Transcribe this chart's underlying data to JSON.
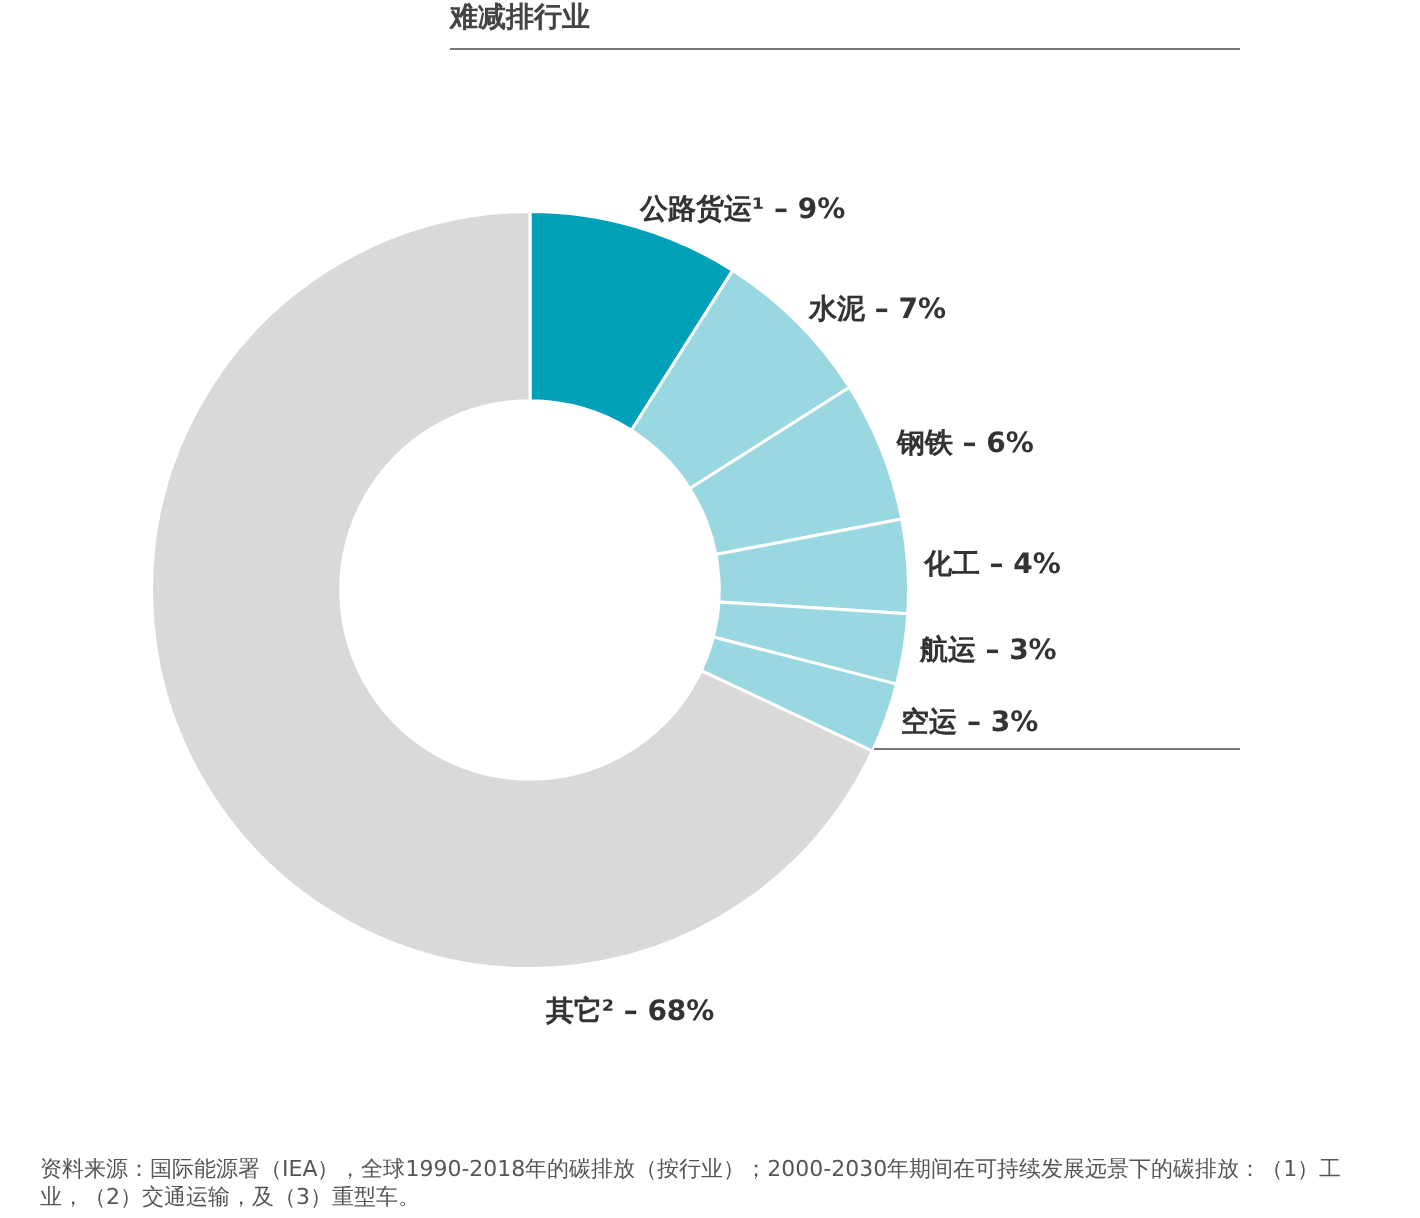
{
  "chart_data": {
    "type": "donut",
    "title": "难减排行业",
    "categories": [
      "公路货运¹",
      "水泥",
      "钢铁",
      "化工",
      "航运",
      "空运",
      "其它²"
    ],
    "values": [
      9,
      7,
      6,
      4,
      3,
      3,
      68
    ],
    "value_labels": [
      "9%",
      "7%",
      "6%",
      "4%",
      "3%",
      "3%",
      "68%"
    ],
    "colors": [
      "#00a0b8",
      "#9ad8e1",
      "#9ad8e1",
      "#9ad8e1",
      "#9ad8e1",
      "#9ad8e1",
      "#d9d9d9"
    ],
    "legend": false,
    "annotations": [
      "资料来源：国际能源署（IEA），全球1990-2018年的碳排放（按行业）；2000-2030年期间在可持续发展远景下的碳排放：（1）工业，（2）交通运输，及（3）重型车。"
    ]
  }
}
